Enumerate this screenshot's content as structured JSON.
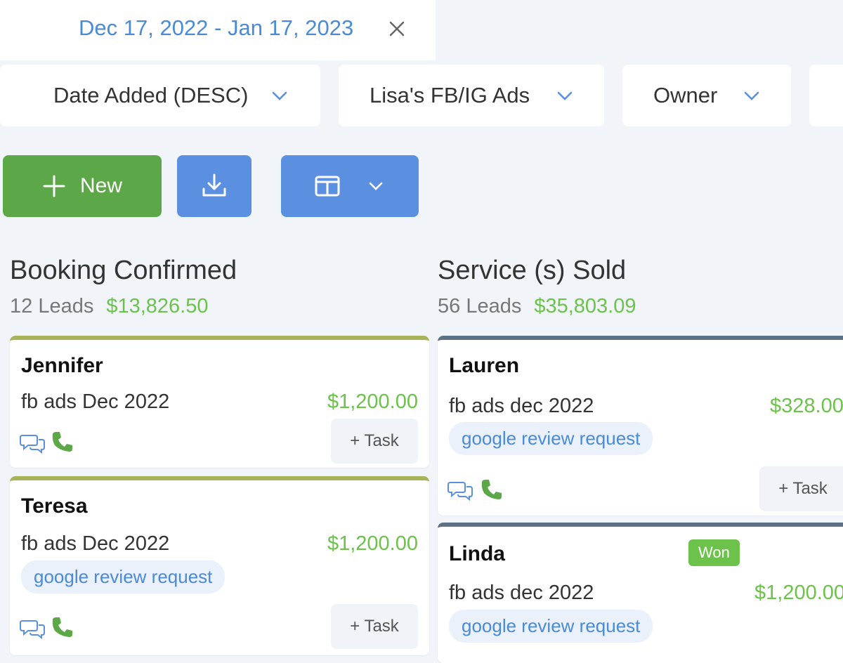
{
  "date_range": {
    "label": "Dec 17, 2022 - Jan 17, 2023"
  },
  "filters": {
    "sort": "Date Added (DESC)",
    "pipeline": "Lisa's FB/IG Ads",
    "owner": "Owner"
  },
  "toolbar": {
    "new_label": "New"
  },
  "colors": {
    "accent_blue": "#5b8fe0",
    "green": "#6cc24a",
    "new_button": "#5ca848",
    "olive_stage": "#a8b45a",
    "steel_stage": "#5e7287"
  },
  "columns": [
    {
      "title": "Booking Confirmed",
      "leads": "12 Leads",
      "amount": "$13,826.50",
      "cards": [
        {
          "name": "Jennifer",
          "source": "fb ads Dec 2022",
          "value": "$1,200.00",
          "task": "+ Task"
        },
        {
          "name": "Teresa",
          "source": "fb ads Dec 2022",
          "value": "$1,200.00",
          "tag": "google review request",
          "task": "+ Task"
        }
      ]
    },
    {
      "title": "Service (s) Sold",
      "leads": "56 Leads",
      "amount": "$35,803.09",
      "cards": [
        {
          "name": "Lauren",
          "source": "fb ads dec 2022",
          "value": "$328.00",
          "tag": "google review request",
          "task": "+ Task"
        },
        {
          "name": "Linda",
          "source": "fb ads dec 2022",
          "value": "$1,200.00",
          "badge": "Won",
          "tag": "google review request"
        }
      ]
    }
  ],
  "icons": {
    "close": "close-icon",
    "sort": "sort-icon",
    "chevron": "chevron-down-icon",
    "plus": "plus-icon",
    "download": "download-icon",
    "columns": "columns-icon",
    "chat": "chat-icon",
    "phone": "phone-icon"
  }
}
